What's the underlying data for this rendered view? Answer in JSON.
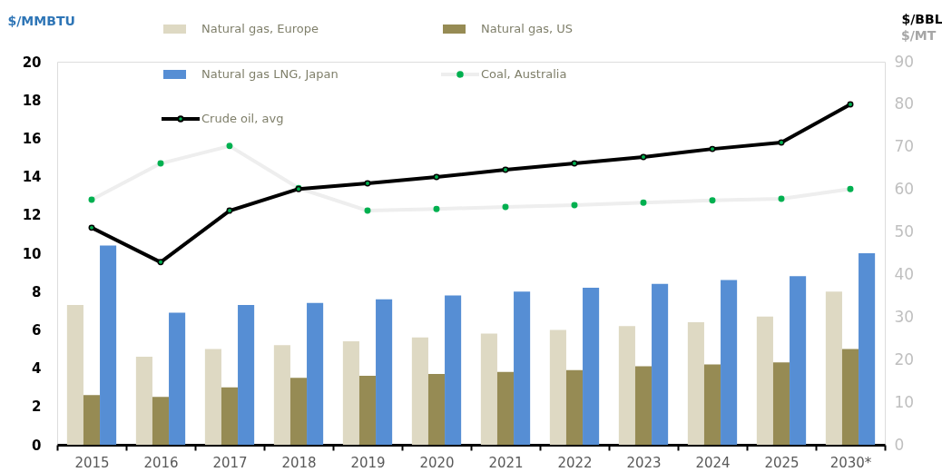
{
  "chart_data": {
    "type": "bar",
    "ylabel": "$/MMBTU",
    "y2label": "$/BBL",
    "annotations": [
      "$/MT"
    ],
    "categories": [
      "2015",
      "2016",
      "2017",
      "2018",
      "2019",
      "2020",
      "2021",
      "2022",
      "2023",
      "2024",
      "2025",
      "2030*"
    ],
    "ylim": [
      0,
      20
    ],
    "yticks": [
      0,
      2,
      4,
      6,
      8,
      10,
      12,
      14,
      16,
      18,
      20
    ],
    "y2lim": [
      0,
      90
    ],
    "y2ticks": [
      0,
      10,
      20,
      30,
      40,
      50,
      60,
      70,
      80,
      90
    ],
    "grid": false,
    "legend": "top",
    "marker": "circle",
    "series": [
      {
        "name": "Natural gas, Europe",
        "color": "#ded9c3",
        "values": [
          7.3,
          4.6,
          5.0,
          5.2,
          5.4,
          5.6,
          5.8,
          6.0,
          6.2,
          6.4,
          6.7,
          8.0
        ]
      },
      {
        "name": "Natural gas, US",
        "color": "#968b54",
        "values": [
          2.6,
          2.5,
          3.0,
          3.5,
          3.6,
          3.7,
          3.8,
          3.9,
          4.1,
          4.2,
          4.3,
          5.0
        ]
      },
      {
        "name": "Natural gas LNG, Japan",
        "color": "#568ed4",
        "values": [
          10.4,
          6.9,
          7.3,
          7.4,
          7.6,
          7.8,
          8.0,
          8.2,
          8.4,
          8.6,
          8.8,
          10.0
        ]
      },
      {
        "name": "Coal, Australia",
        "type": "line",
        "axis": "y2",
        "color": "#eeeeee",
        "values": [
          57.6,
          66.1,
          70.2,
          60.3,
          55.0,
          55.4,
          55.9,
          56.3,
          56.9,
          57.4,
          57.8,
          60.1
        ]
      },
      {
        "name": "Crude oil, avg",
        "type": "line",
        "axis": "y2",
        "color": "#000000",
        "values": [
          51.0,
          42.9,
          55.0,
          60.1,
          61.4,
          62.9,
          64.6,
          66.1,
          67.6,
          69.5,
          71.0,
          80.0
        ]
      }
    ]
  }
}
